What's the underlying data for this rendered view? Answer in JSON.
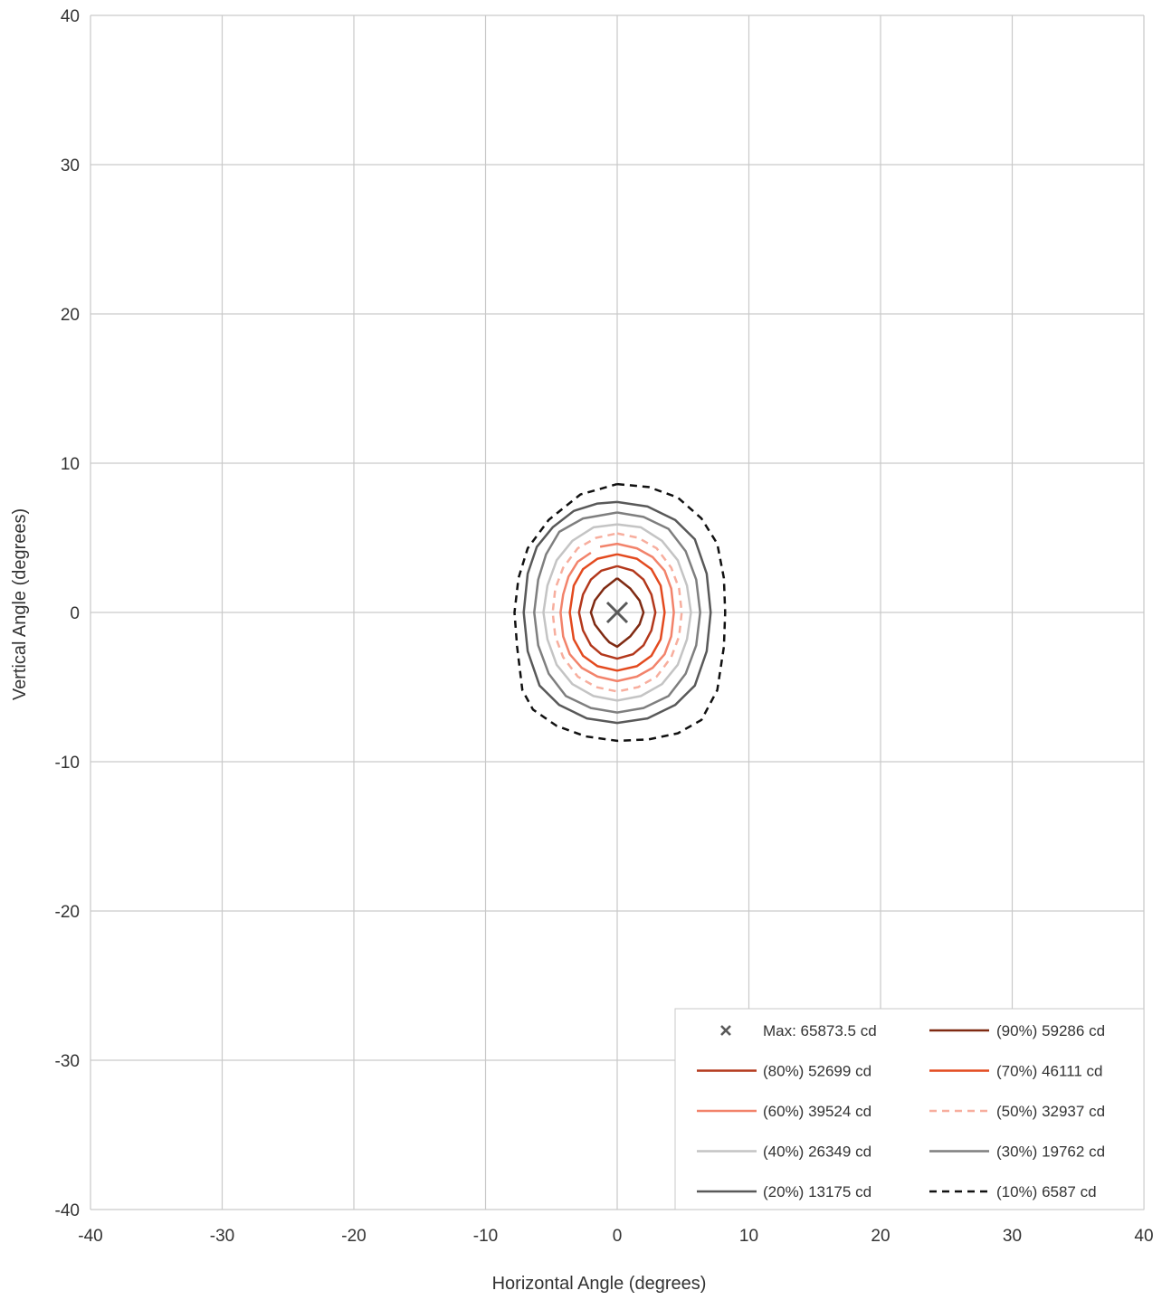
{
  "chart_data": {
    "type": "line",
    "title": "",
    "xlabel": "Horizontal Angle (degrees)",
    "ylabel": "Vertical Angle (degrees)",
    "xlim": [
      -40,
      40
    ],
    "ylim": [
      -40,
      40
    ],
    "xticks": [
      -40,
      -30,
      -20,
      -10,
      0,
      10,
      20,
      30,
      40
    ],
    "yticks": [
      -40,
      -30,
      -20,
      -10,
      0,
      10,
      20,
      30,
      40
    ],
    "grid": true,
    "legend_position": "bottom-right",
    "max_point": {
      "name": "Max: 65873.5 cd",
      "x": 0,
      "y": 0,
      "color": "#595959"
    },
    "series": [
      {
        "name": "(90%) 59286 cd",
        "color": "#7f2a12",
        "dash": "solid",
        "points": [
          [
            0,
            2.3
          ],
          [
            1,
            1.6
          ],
          [
            1.7,
            0.8
          ],
          [
            2,
            0
          ],
          [
            1.7,
            -0.8
          ],
          [
            1,
            -1.6
          ],
          [
            0,
            -2.3
          ],
          [
            -0.6,
            -2
          ],
          [
            -1,
            -1.6
          ],
          [
            -1.7,
            -0.8
          ],
          [
            -2,
            0
          ],
          [
            -1.7,
            0.8
          ],
          [
            -1,
            1.6
          ],
          [
            0,
            2.3
          ]
        ]
      },
      {
        "name": "(80%) 52699 cd",
        "color": "#b3381c",
        "dash": "solid",
        "points": [
          [
            0,
            3.1
          ],
          [
            1.2,
            2.8
          ],
          [
            2,
            2.2
          ],
          [
            2.6,
            1.2
          ],
          [
            2.9,
            0
          ],
          [
            2.6,
            -1.2
          ],
          [
            2,
            -2.2
          ],
          [
            1.2,
            -2.8
          ],
          [
            0,
            -3.1
          ],
          [
            -1.2,
            -2.8
          ],
          [
            -2,
            -2.2
          ],
          [
            -2.6,
            -1.2
          ],
          [
            -2.9,
            0
          ],
          [
            -2.6,
            1.2
          ],
          [
            -2,
            2.2
          ],
          [
            -1.2,
            2.8
          ],
          [
            0,
            3.1
          ]
        ]
      },
      {
        "name": "(70%) 46111 cd",
        "color": "#e34a1f",
        "dash": "solid",
        "points": [
          [
            0,
            3.9
          ],
          [
            1.5,
            3.6
          ],
          [
            2.6,
            2.9
          ],
          [
            3.3,
            1.8
          ],
          [
            3.6,
            0
          ],
          [
            3.3,
            -1.8
          ],
          [
            2.6,
            -2.9
          ],
          [
            1.5,
            -3.6
          ],
          [
            0,
            -3.9
          ],
          [
            -1.5,
            -3.6
          ],
          [
            -2.6,
            -2.9
          ],
          [
            -3.3,
            -1.8
          ],
          [
            -3.6,
            0
          ],
          [
            -3.3,
            1.8
          ],
          [
            -2.6,
            2.9
          ],
          [
            -1.5,
            3.6
          ],
          [
            0,
            3.9
          ]
        ]
      },
      {
        "name": "(60%) 39524 cd",
        "color": "#f2836b",
        "dash": "solid",
        "points": [
          [
            -2,
            4
          ],
          [
            -3,
            3.4
          ],
          [
            -3.7,
            2.4
          ],
          [
            -4.1,
            1.2
          ],
          [
            -4.3,
            0
          ],
          [
            -4.1,
            -1.6
          ],
          [
            -3.6,
            -2.8
          ],
          [
            -2.7,
            -3.7
          ],
          [
            -1.5,
            -4.3
          ],
          [
            0,
            -4.6
          ],
          [
            1.5,
            -4.3
          ],
          [
            2.7,
            -3.7
          ],
          [
            3.6,
            -2.8
          ],
          [
            4.1,
            -1.6
          ],
          [
            4.3,
            0
          ],
          [
            4.1,
            1.6
          ],
          [
            3.6,
            2.8
          ],
          [
            2.7,
            3.7
          ],
          [
            1.5,
            4.3
          ],
          [
            0,
            4.6
          ],
          [
            -1.3,
            4.4
          ]
        ]
      },
      {
        "name": "(50%) 32937 cd",
        "color": "#f7ae9e",
        "dash": "dashed",
        "points": [
          [
            0,
            5.3
          ],
          [
            1.6,
            5
          ],
          [
            3,
            4.3
          ],
          [
            4.1,
            3
          ],
          [
            4.7,
            1.6
          ],
          [
            4.9,
            0
          ],
          [
            4.7,
            -1.6
          ],
          [
            4.1,
            -3
          ],
          [
            3,
            -4.3
          ],
          [
            1.6,
            -5
          ],
          [
            0,
            -5.3
          ],
          [
            -1.6,
            -5
          ],
          [
            -3,
            -4.3
          ],
          [
            -4.1,
            -3
          ],
          [
            -4.7,
            -1.6
          ],
          [
            -4.9,
            0
          ],
          [
            -4.7,
            1.6
          ],
          [
            -4.1,
            3
          ],
          [
            -3,
            4.3
          ],
          [
            -1.6,
            5
          ],
          [
            0,
            5.3
          ]
        ]
      },
      {
        "name": "(40%) 26349 cd",
        "color": "#c4c4c4",
        "dash": "solid",
        "points": [
          [
            0,
            5.9
          ],
          [
            1.8,
            5.7
          ],
          [
            3.4,
            4.8
          ],
          [
            4.6,
            3.5
          ],
          [
            5.3,
            1.8
          ],
          [
            5.6,
            0
          ],
          [
            5.3,
            -1.8
          ],
          [
            4.6,
            -3.5
          ],
          [
            3.4,
            -4.8
          ],
          [
            1.8,
            -5.6
          ],
          [
            0,
            -5.9
          ],
          [
            -1.8,
            -5.6
          ],
          [
            -3.4,
            -4.8
          ],
          [
            -4.6,
            -3.5
          ],
          [
            -5.3,
            -1.8
          ],
          [
            -5.6,
            0
          ],
          [
            -5.3,
            1.8
          ],
          [
            -4.6,
            3.5
          ],
          [
            -3.4,
            4.8
          ],
          [
            -1.8,
            5.7
          ],
          [
            0,
            5.9
          ]
        ]
      },
      {
        "name": "(30%) 19762 cd",
        "color": "#7f7f7f",
        "dash": "solid",
        "points": [
          [
            0,
            6.7
          ],
          [
            2,
            6.4
          ],
          [
            3.9,
            5.6
          ],
          [
            5.2,
            4.1
          ],
          [
            6,
            2.2
          ],
          [
            6.3,
            0
          ],
          [
            6,
            -2.2
          ],
          [
            5.2,
            -4.1
          ],
          [
            3.9,
            -5.6
          ],
          [
            2,
            -6.4
          ],
          [
            0,
            -6.7
          ],
          [
            -2,
            -6.4
          ],
          [
            -3.9,
            -5.6
          ],
          [
            -5.2,
            -4.1
          ],
          [
            -6,
            -2.2
          ],
          [
            -6.3,
            0
          ],
          [
            -6,
            2.2
          ],
          [
            -5.4,
            3.9
          ],
          [
            -4.4,
            5.4
          ],
          [
            -2.6,
            6.3
          ],
          [
            0,
            6.7
          ]
        ]
      },
      {
        "name": "(20%) 13175 cd",
        "color": "#595959",
        "dash": "solid",
        "points": [
          [
            0,
            7.4
          ],
          [
            2.3,
            7.1
          ],
          [
            4.4,
            6.2
          ],
          [
            5.9,
            4.9
          ],
          [
            6.8,
            2.6
          ],
          [
            7.1,
            0
          ],
          [
            6.8,
            -2.6
          ],
          [
            5.9,
            -4.9
          ],
          [
            4.4,
            -6.2
          ],
          [
            2.3,
            -7.1
          ],
          [
            0,
            -7.4
          ],
          [
            -2.3,
            -7.1
          ],
          [
            -4.4,
            -6.2
          ],
          [
            -5.9,
            -4.9
          ],
          [
            -6.8,
            -2.6
          ],
          [
            -7.1,
            0
          ],
          [
            -6.8,
            2.6
          ],
          [
            -6.1,
            4.4
          ],
          [
            -4.9,
            5.7
          ],
          [
            -3.3,
            6.8
          ],
          [
            -1.5,
            7.3
          ],
          [
            0,
            7.4
          ]
        ]
      },
      {
        "name": "(10%) 6587 cd",
        "color": "#111111",
        "dash": "dashed",
        "points": [
          [
            0,
            8.6
          ],
          [
            2.4,
            8.4
          ],
          [
            4.6,
            7.7
          ],
          [
            6.4,
            6.3
          ],
          [
            7.6,
            4.6
          ],
          [
            8.1,
            2.3
          ],
          [
            8.2,
            0
          ],
          [
            8.1,
            -2.3
          ],
          [
            7.6,
            -5.2
          ],
          [
            6.4,
            -7.2
          ],
          [
            4.6,
            -8.1
          ],
          [
            2.4,
            -8.5
          ],
          [
            0,
            -8.6
          ],
          [
            -2.4,
            -8.3
          ],
          [
            -4.6,
            -7.6
          ],
          [
            -6.4,
            -6.5
          ],
          [
            -7.2,
            -5.2
          ],
          [
            -7.6,
            -2.3
          ],
          [
            -7.8,
            0
          ],
          [
            -7.5,
            2.3
          ],
          [
            -6.8,
            4.3
          ],
          [
            -5.2,
            6.2
          ],
          [
            -2.8,
            7.9
          ],
          [
            0,
            8.6
          ]
        ]
      }
    ]
  }
}
